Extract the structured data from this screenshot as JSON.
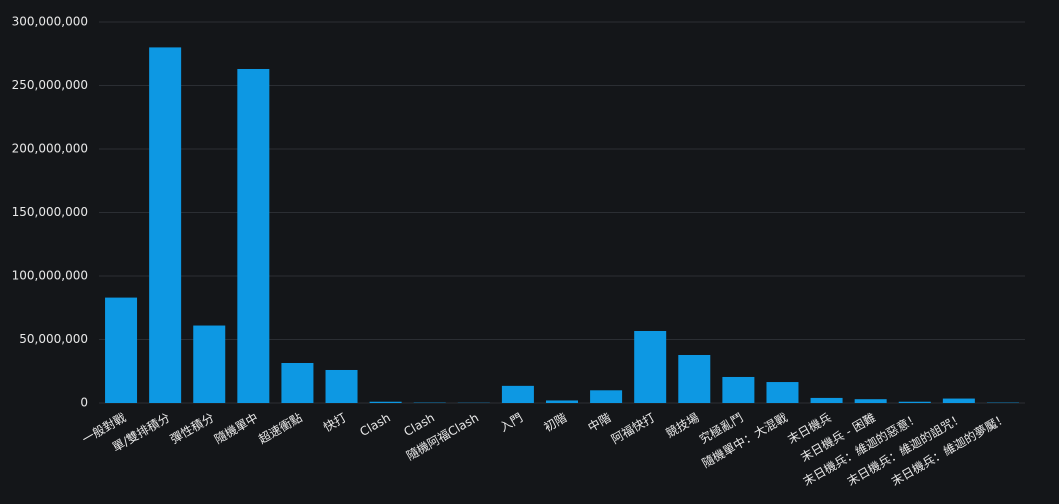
{
  "chart_data": {
    "type": "bar",
    "categories": [
      "一般對戰",
      "單/雙排積分",
      "彈性積分",
      "隨機單中",
      "超速衝點",
      "快打",
      "Clash",
      "Clash",
      "隨機阿福Clash",
      "入門",
      "初階",
      "中階",
      "阿福快打",
      "競技場",
      "究極亂鬥",
      "隨機單中：大混戰",
      "末日機兵",
      "末日機兵 - 困難",
      "末日機兵：維迦的惡意！",
      "末日機兵：維迦的詛咒！",
      "末日機兵：維迦的夢魘！"
    ],
    "values": [
      83000000,
      280000000,
      61000000,
      263000000,
      31500000,
      26000000,
      1000000,
      300000,
      200000,
      13500000,
      2000000,
      10000000,
      56700000,
      37800000,
      20500000,
      16500000,
      4000000,
      3000000,
      1000000,
      3500000,
      300000
    ],
    "color": "#0d98e3",
    "ylim": [
      0,
      300000000
    ],
    "yticks": [
      0,
      {
        "value": 50000000,
        "label": "50,000,000"
      },
      {
        "value": 100000000,
        "label": "100,000,000"
      },
      {
        "value": 150000000,
        "label": "150,000,000"
      },
      {
        "value": 200000000,
        "label": "200,000,000"
      },
      {
        "value": 250000000,
        "label": "250,000,000"
      },
      {
        "value": 300000000,
        "label": "300,000,000"
      }
    ],
    "grid": true
  }
}
